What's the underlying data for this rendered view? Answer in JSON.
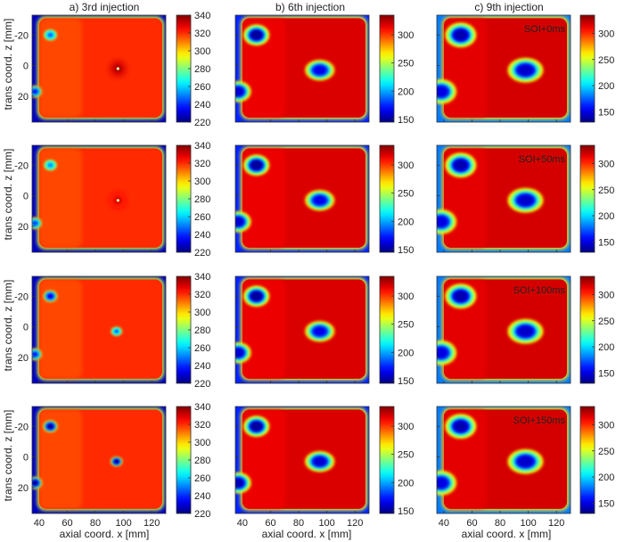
{
  "figure": {
    "column_titles": [
      "a) 3rd injection",
      "b) 6th injection",
      "c) 9th injection"
    ],
    "row_annotations": [
      "SOI+0ms",
      "SOI+50ms",
      "SOI+100ms",
      "SOI+150ms"
    ],
    "ylabel": "trans coord. z [mm]",
    "xlabel": "axial coord. x [mm]"
  },
  "chart_data": {
    "type": "heatmap",
    "layout": "4 rows x 3 columns of heatmaps",
    "colormap": "jet",
    "x_axis": {
      "label": "axial coord. x [mm]",
      "ticks": [
        40,
        60,
        80,
        100,
        120
      ],
      "range": [
        35,
        130
      ]
    },
    "y_axis": {
      "label": "trans coord. z [mm]",
      "ticks": [
        -20,
        0,
        20
      ],
      "range": [
        -33,
        37
      ],
      "inverted": true
    },
    "colorbars": [
      {
        "column": "a) 3rd injection",
        "range": [
          220,
          340
        ],
        "ticks": [
          340,
          320,
          300,
          280,
          260,
          240,
          220
        ]
      },
      {
        "column": "b) 6th injection",
        "range": [
          145,
          335
        ],
        "ticks": [
          300,
          250,
          200,
          150
        ]
      },
      {
        "column": "c) 9th injection",
        "range": [
          130,
          335
        ],
        "ticks": [
          300,
          250,
          200,
          150
        ]
      }
    ],
    "panels": [
      {
        "row": 0,
        "column": 0,
        "background": 228,
        "window": 320,
        "hot_spot": {
          "x": 96,
          "z": 2,
          "value": 338
        },
        "cold_spots": [
          {
            "x": 48,
            "z": -20,
            "value": 250
          },
          {
            "x": 37,
            "z": 17,
            "value": 240
          }
        ]
      },
      {
        "row": 0,
        "column": 1,
        "background": 175,
        "window": 318,
        "cold_spots": [
          {
            "x": 50,
            "z": -20,
            "value": 150
          },
          {
            "x": 95,
            "z": 3,
            "value": 165
          },
          {
            "x": 37,
            "z": 17,
            "value": 160
          }
        ]
      },
      {
        "row": 0,
        "column": 2,
        "background": 180,
        "window": 318,
        "annotation": "SOI+0ms",
        "cold_spots": [
          {
            "x": 52,
            "z": -20,
            "value": 140
          },
          {
            "x": 98,
            "z": 3,
            "value": 145
          },
          {
            "x": 38,
            "z": 17,
            "value": 150
          }
        ]
      },
      {
        "row": 1,
        "column": 0,
        "background": 228,
        "window": 320,
        "hot_spot": {
          "x": 96,
          "z": 3,
          "value": 332
        },
        "cold_spots": [
          {
            "x": 48,
            "z": -20,
            "value": 255
          },
          {
            "x": 37,
            "z": 18,
            "value": 245
          }
        ]
      },
      {
        "row": 1,
        "column": 1,
        "background": 175,
        "window": 318,
        "cold_spots": [
          {
            "x": 50,
            "z": -20,
            "value": 150
          },
          {
            "x": 95,
            "z": 3,
            "value": 165
          },
          {
            "x": 37,
            "z": 17,
            "value": 160
          }
        ]
      },
      {
        "row": 1,
        "column": 2,
        "background": 180,
        "window": 318,
        "annotation": "SOI+50ms",
        "cold_spots": [
          {
            "x": 52,
            "z": -20,
            "value": 140
          },
          {
            "x": 98,
            "z": 3,
            "value": 145
          },
          {
            "x": 38,
            "z": 17,
            "value": 150
          }
        ]
      },
      {
        "row": 2,
        "column": 0,
        "background": 228,
        "window": 320,
        "cold_spots": [
          {
            "x": 48,
            "z": -20,
            "value": 235
          },
          {
            "x": 95,
            "z": 3,
            "value": 250
          },
          {
            "x": 37,
            "z": 18,
            "value": 240
          }
        ]
      },
      {
        "row": 2,
        "column": 1,
        "background": 175,
        "window": 318,
        "cold_spots": [
          {
            "x": 50,
            "z": -20,
            "value": 150
          },
          {
            "x": 95,
            "z": 3,
            "value": 165
          },
          {
            "x": 37,
            "z": 17,
            "value": 160
          }
        ]
      },
      {
        "row": 2,
        "column": 2,
        "background": 180,
        "window": 318,
        "annotation": "SOI+100ms",
        "cold_spots": [
          {
            "x": 52,
            "z": -20,
            "value": 140
          },
          {
            "x": 98,
            "z": 3,
            "value": 145
          },
          {
            "x": 38,
            "z": 17,
            "value": 150
          }
        ]
      },
      {
        "row": 3,
        "column": 0,
        "background": 228,
        "window": 320,
        "cold_spots": [
          {
            "x": 48,
            "z": -20,
            "value": 225
          },
          {
            "x": 95,
            "z": 3,
            "value": 225
          },
          {
            "x": 37,
            "z": 17,
            "value": 225
          }
        ]
      },
      {
        "row": 3,
        "column": 1,
        "background": 175,
        "window": 318,
        "cold_spots": [
          {
            "x": 50,
            "z": -20,
            "value": 150
          },
          {
            "x": 95,
            "z": 3,
            "value": 160
          },
          {
            "x": 37,
            "z": 17,
            "value": 155
          }
        ]
      },
      {
        "row": 3,
        "column": 2,
        "background": 180,
        "window": 318,
        "annotation": "SOI+150ms",
        "cold_spots": [
          {
            "x": 52,
            "z": -20,
            "value": 140
          },
          {
            "x": 98,
            "z": 3,
            "value": 145
          },
          {
            "x": 38,
            "z": 17,
            "value": 150
          }
        ]
      }
    ]
  }
}
